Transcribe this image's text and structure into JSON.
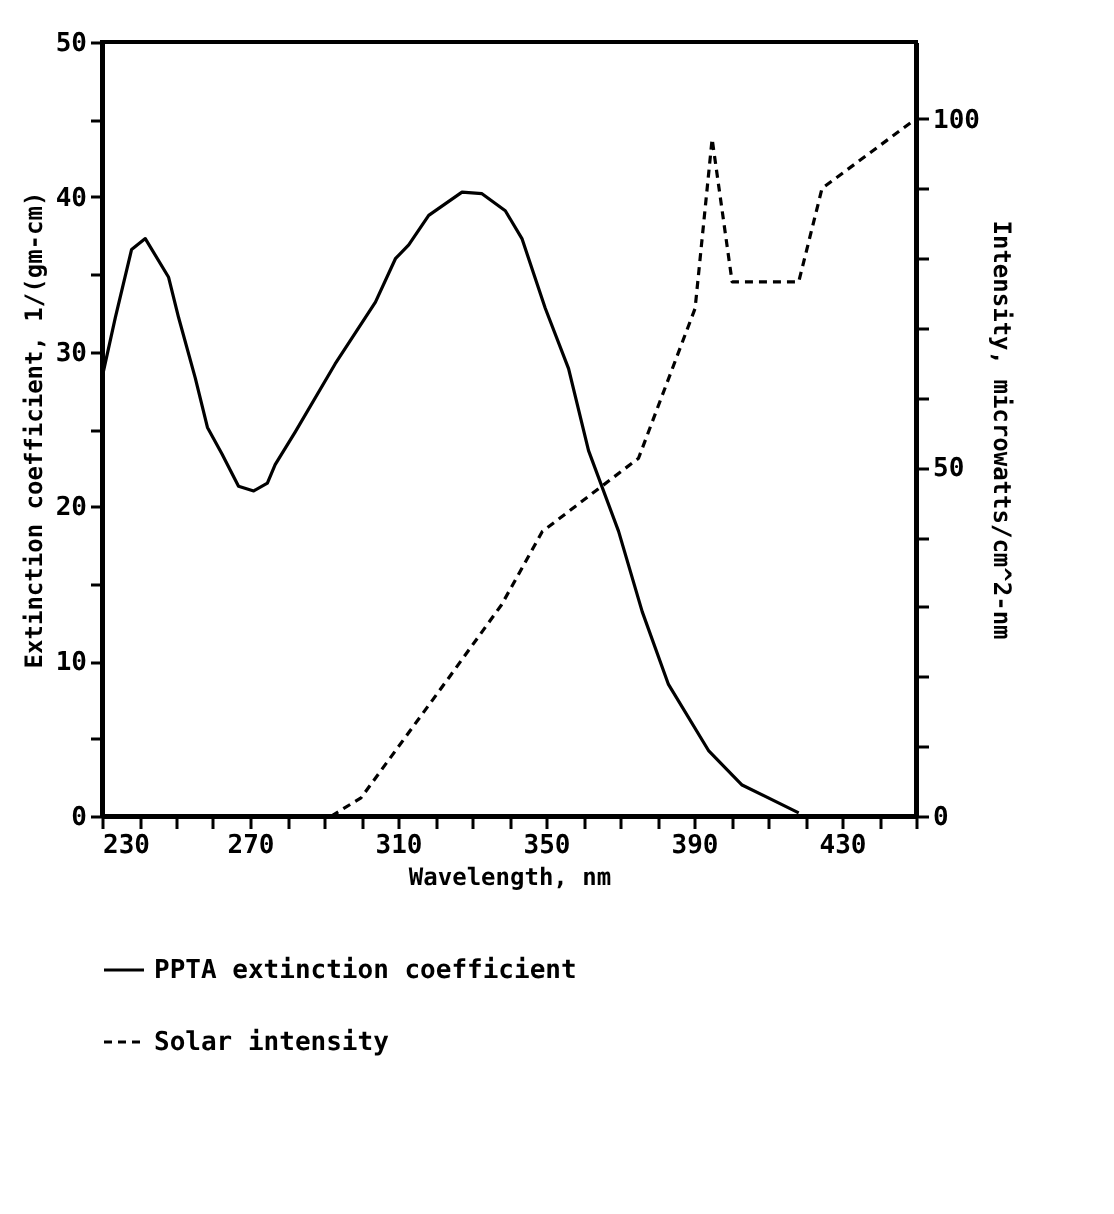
{
  "chart_data": {
    "type": "line",
    "xlabel": "Wavelength, nm",
    "ylabel": "Extinction coefficient, 1/(gm-cm)",
    "y2label": "Intensity, microwatts/cm^2-nm",
    "xlim": [
      230,
      450
    ],
    "xticks": [
      230,
      {
        "value": 240,
        "label": null
      },
      {
        "value": 250,
        "label": null
      },
      {
        "value": 260,
        "label": null
      },
      270,
      {
        "value": 280,
        "label": null
      },
      {
        "value": 290,
        "label": null
      },
      {
        "value": 300,
        "label": null
      },
      310,
      {
        "value": 320,
        "label": null
      },
      {
        "value": 330,
        "label": null
      },
      {
        "value": 340,
        "label": null
      },
      350,
      {
        "value": 360,
        "label": null
      },
      {
        "value": 370,
        "label": null
      },
      {
        "value": 380,
        "label": null
      },
      390,
      {
        "value": 400,
        "label": null
      },
      {
        "value": 410,
        "label": null
      },
      {
        "value": 420,
        "label": null
      },
      430,
      {
        "value": 440,
        "label": null
      },
      {
        "value": 450,
        "label": null
      }
    ],
    "ylim": [
      0,
      50
    ],
    "yticks": [
      0,
      {
        "value": 5,
        "label": null
      },
      10,
      {
        "value": 15,
        "label": null
      },
      20,
      {
        "value": 25,
        "label": null
      },
      30,
      {
        "value": 35,
        "label": null
      },
      40,
      {
        "value": 45,
        "label": null
      },
      50
    ],
    "y2lim": [
      0,
      111
    ],
    "y2ticks": [
      0,
      {
        "value": 10,
        "label": null
      },
      {
        "value": 20,
        "label": null
      },
      {
        "value": 30,
        "label": null
      },
      {
        "value": 40,
        "label": null
      },
      50,
      {
        "value": 60,
        "label": null
      },
      {
        "value": 70,
        "label": null
      },
      {
        "value": 80,
        "label": null
      },
      {
        "value": 90,
        "label": null
      },
      100
    ],
    "legend": "bottom",
    "series": [
      {
        "name": "PPTA extinction coefficient",
        "color": "#000000",
        "line_style": "solid",
        "x": [
          230,
          233.6,
          238,
          241.7,
          248,
          250.7,
          255.2,
          258.5,
          262.4,
          266.9,
          271,
          274.7,
          276.8,
          282.2,
          293,
          303.9,
          309.3,
          312.9,
          318.3,
          327.3,
          332.7,
          339,
          343.5,
          349.8,
          356.1,
          361.5,
          369.6,
          376,
          383.1,
          394,
          403,
          418.3
        ],
        "values": [
          28.3,
          32.2,
          36.6,
          37.3,
          34.8,
          32.2,
          28.3,
          25.1,
          23.4,
          21.3,
          21,
          21.5,
          22.7,
          24.8,
          29.2,
          33.2,
          36,
          36.9,
          38.8,
          40.3,
          40.2,
          39.1,
          37.3,
          32.8,
          28.9,
          23.6,
          18.4,
          13.2,
          8.5,
          4.2,
          2,
          0.2
        ]
      },
      {
        "name": "Solar intensity",
        "color": "#000000",
        "line_style": "dashed",
        "axis": "y2",
        "x": [
          292,
          300,
          323.7,
          338,
          349,
          375,
          390.3,
          394.9,
          400.3,
          418.3,
          424.6,
          450
        ],
        "values": [
          0,
          2.6,
          19.8,
          30.3,
          40.8,
          51.3,
          72.8,
          97.1,
          76.6,
          76.6,
          90,
          100
        ]
      }
    ]
  }
}
